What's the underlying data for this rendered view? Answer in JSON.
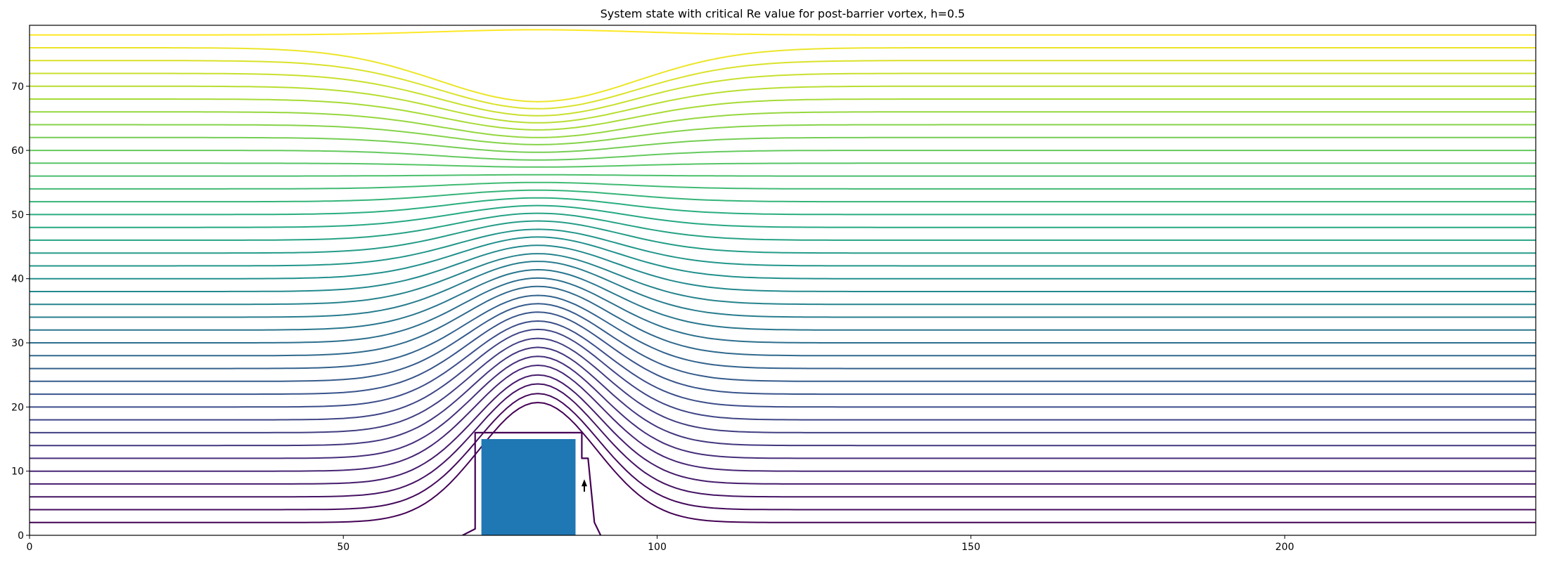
{
  "chart_data": {
    "type": "contour",
    "title": "System state with critical Re value for post-barrier vortex, h=0.5",
    "xlabel": "",
    "ylabel": "",
    "xlim": [
      0,
      240
    ],
    "ylim": [
      0,
      79.5
    ],
    "xticks": [
      0,
      50,
      100,
      150,
      200
    ],
    "yticks": [
      0,
      10,
      20,
      30,
      40,
      50,
      60,
      70
    ],
    "grid": false,
    "colormap": "viridis",
    "streamlines": {
      "far_field_levels": [
        0,
        2,
        4,
        6,
        8,
        10,
        12,
        14,
        16,
        18,
        20,
        22,
        24,
        26,
        28,
        30,
        32,
        34,
        36,
        38,
        40,
        42,
        44,
        46,
        48,
        50,
        52,
        54,
        56,
        58,
        60,
        62,
        64,
        66,
        68,
        70,
        72,
        74,
        76,
        78
      ],
      "bump_center_x": 81,
      "bump_peak_y": [
        20.7,
        22.1,
        23.6,
        25.0,
        26.5,
        27.9,
        29.3,
        30.7,
        32.1,
        33.4,
        34.8,
        36.1,
        37.4,
        38.8,
        40.1,
        41.4,
        42.7,
        43.9,
        45.2,
        46.5,
        47.7,
        49.0,
        50.2,
        51.4,
        52.6,
        53.8,
        55.0,
        56.2,
        57.4,
        58.5,
        59.7,
        60.9,
        62.0,
        63.2,
        64.3,
        65.4,
        66.5,
        67.6,
        78.8
      ]
    },
    "barrier": {
      "x": [
        72,
        87
      ],
      "y": [
        0,
        15
      ],
      "color": "#1f77b4"
    },
    "separatrix_x": [
      69,
      71,
      71,
      88,
      88,
      89,
      89.5,
      90,
      91
    ],
    "separatrix_y": [
      0,
      1,
      16,
      16,
      12,
      12,
      7,
      2,
      0
    ],
    "vortex_arrow": {
      "x": [
        88.4,
        88.4
      ],
      "y": [
        6.8,
        8.4
      ]
    }
  }
}
